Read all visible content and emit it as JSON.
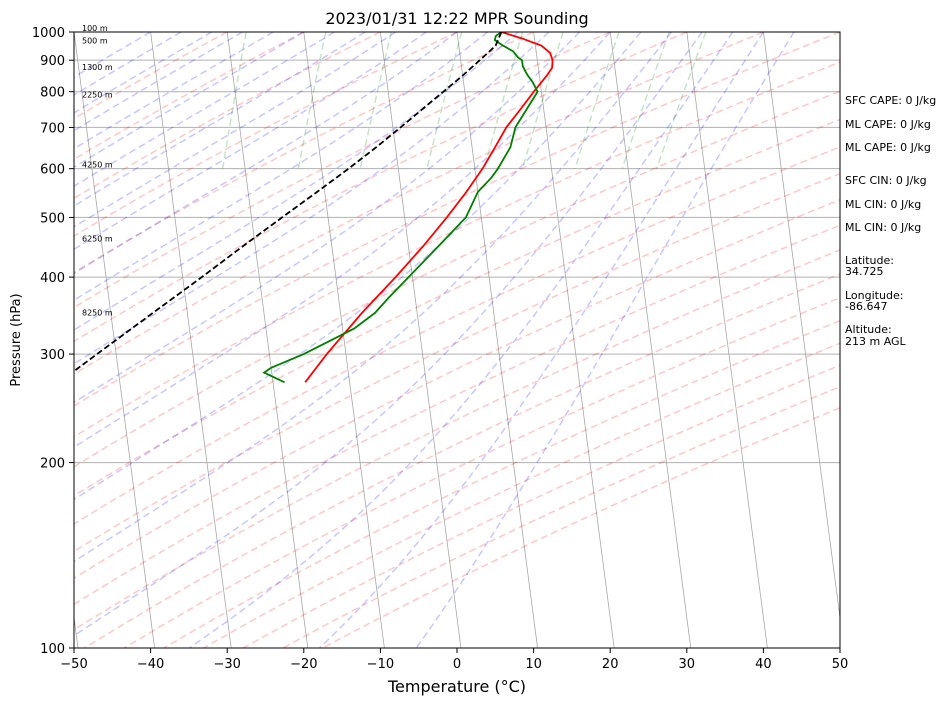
{
  "chart_data": {
    "type": "line",
    "title": "2023/01/31 12:22 MPR Sounding",
    "xlabel": "Temperature (°C)",
    "ylabel": "Pressure (hPa)",
    "xlim": [
      -50,
      50
    ],
    "ylim": [
      1000,
      100
    ],
    "y_scale": "log",
    "x_ticks": [
      -50,
      -40,
      -30,
      -20,
      -10,
      0,
      10,
      20,
      30,
      40,
      50
    ],
    "y_ticks": [
      100,
      200,
      300,
      400,
      500,
      600,
      700,
      800,
      900,
      1000
    ],
    "grid": true,
    "series": [
      {
        "role": "temperature",
        "color": "#ff0000",
        "points": [
          [
            1000,
            5.8
          ],
          [
            975,
            8.5
          ],
          [
            950,
            10.8
          ],
          [
            925,
            11.8
          ],
          [
            900,
            12.0
          ],
          [
            875,
            11.8
          ],
          [
            850,
            11.0
          ],
          [
            800,
            9.0
          ],
          [
            750,
            7.0
          ],
          [
            700,
            4.8
          ],
          [
            650,
            3.0
          ],
          [
            600,
            1.0
          ],
          [
            550,
            -1.5
          ],
          [
            500,
            -4.5
          ],
          [
            450,
            -8.0
          ],
          [
            400,
            -12.2
          ],
          [
            350,
            -17.2
          ],
          [
            300,
            -22.5
          ],
          [
            270,
            -25.8
          ]
        ]
      },
      {
        "role": "dewpoint",
        "color": "#008000",
        "points": [
          [
            1000,
            5.8
          ],
          [
            985,
            5.0
          ],
          [
            970,
            4.8
          ],
          [
            950,
            5.8
          ],
          [
            930,
            7.0
          ],
          [
            910,
            7.5
          ],
          [
            900,
            8.0
          ],
          [
            880,
            8.0
          ],
          [
            860,
            8.3
          ],
          [
            850,
            8.5
          ],
          [
            830,
            9.0
          ],
          [
            800,
            9.5
          ],
          [
            750,
            7.8
          ],
          [
            700,
            6.0
          ],
          [
            650,
            5.0
          ],
          [
            600,
            3.0
          ],
          [
            580,
            2.0
          ],
          [
            550,
            0.0
          ],
          [
            500,
            -2.0
          ],
          [
            450,
            -6.0
          ],
          [
            400,
            -10.5
          ],
          [
            370,
            -13.5
          ],
          [
            350,
            -15.5
          ],
          [
            330,
            -18.5
          ],
          [
            300,
            -25.5
          ],
          [
            285,
            -30.0
          ],
          [
            280,
            -31.0
          ],
          [
            270,
            -28.5
          ]
        ]
      },
      {
        "role": "parcel",
        "color": "#000000",
        "points": [
          [
            1000,
            5.8
          ],
          [
            950,
            4.8
          ],
          [
            900,
            2.5
          ],
          [
            850,
            0.0
          ],
          [
            800,
            -2.8
          ],
          [
            750,
            -5.8
          ],
          [
            700,
            -9.0
          ],
          [
            650,
            -12.5
          ],
          [
            600,
            -16.5
          ],
          [
            550,
            -21.0
          ],
          [
            500,
            -26.0
          ],
          [
            450,
            -31.5
          ],
          [
            400,
            -37.5
          ],
          [
            350,
            -44.5
          ],
          [
            300,
            -52.5
          ],
          [
            275,
            -57.0
          ]
        ]
      }
    ],
    "reference_lines": {
      "dry_adiabats": {
        "color": "#ff0000"
      },
      "moist_adiabats": {
        "color": "#0000ff"
      },
      "mixing_ratio_lines": {
        "color": "#008000"
      }
    },
    "height_labels": [
      {
        "pressure": 1000,
        "label": "100 m"
      },
      {
        "pressure": 955,
        "label": "500 m"
      },
      {
        "pressure": 865,
        "label": "1300 m"
      },
      {
        "pressure": 780,
        "label": "2250 m"
      },
      {
        "pressure": 600,
        "label": "4250 m"
      },
      {
        "pressure": 455,
        "label": "6250 m"
      },
      {
        "pressure": 345,
        "label": "8250 m"
      }
    ],
    "annotations": [
      "SFC CAPE: 0 J/kg",
      "ML CAPE: 0 J/kg",
      "ML CAPE: 0 J/kg",
      "SFC CIN: 0 J/kg",
      "ML CIN: 0 J/kg",
      "ML CIN: 0 J/kg",
      "Latitude:",
      "34.725",
      "Longitude:",
      "-86.647",
      "Altitude:",
      "213 m AGL"
    ]
  }
}
